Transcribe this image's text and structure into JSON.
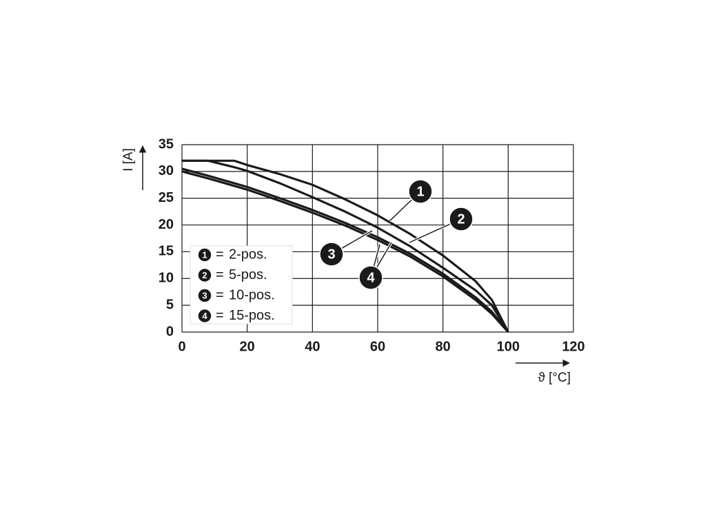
{
  "chart_data": {
    "type": "line",
    "x_label": "ϑ [°C]",
    "y_label": "I [A]",
    "x": [
      0,
      8,
      16,
      20,
      30,
      40,
      50,
      60,
      70,
      80,
      90,
      95,
      100
    ],
    "series": [
      {
        "label": "1",
        "name": "2-pos.",
        "color": "#1a1a1a",
        "values": [
          32,
          32,
          32,
          31.2,
          29.5,
          27.5,
          24.8,
          21.8,
          18.3,
          14.3,
          9.5,
          6,
          0
        ]
      },
      {
        "label": "2",
        "name": "5-pos.",
        "color": "#1a1a1a",
        "values": [
          32,
          32,
          30.8,
          30.1,
          27.8,
          25.2,
          22.5,
          19.5,
          16,
          12,
          7.8,
          5,
          0
        ]
      },
      {
        "label": "3",
        "name": "10-pos.",
        "color": "#1a1a1a",
        "values": [
          30.5,
          29.2,
          27.8,
          27.1,
          25,
          22.8,
          20.4,
          17.7,
          14.6,
          10.9,
          6.5,
          3.8,
          0
        ]
      },
      {
        "label": "4",
        "name": "15-pos.",
        "color": "#1a1a1a",
        "values": [
          30,
          28.7,
          27.3,
          26.6,
          24.5,
          22.3,
          19.9,
          17.2,
          14.1,
          10.4,
          6,
          3.4,
          0
        ]
      }
    ],
    "legend_separator": "=",
    "xlim": [
      0,
      120
    ],
    "xticks": [
      0,
      20,
      40,
      60,
      80,
      100,
      120
    ],
    "ylim": [
      0,
      35
    ],
    "yticks": [
      0,
      5,
      10,
      15,
      20,
      25,
      30,
      35
    ],
    "grid": true
  }
}
